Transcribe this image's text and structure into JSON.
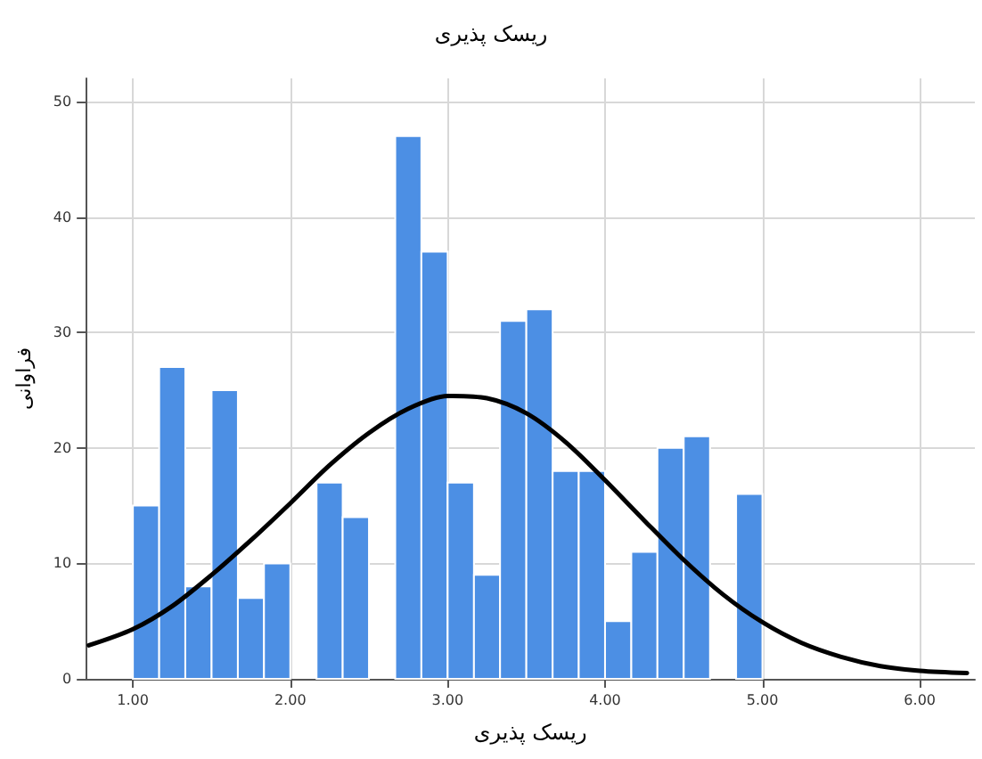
{
  "chart_data": {
    "type": "histogram",
    "title": "ریسک پذیری",
    "xlabel": "ریسک پذیری",
    "ylabel": "فراوانی",
    "bins": [
      1.0,
      1.167,
      1.333,
      1.5,
      1.667,
      1.833,
      2.0,
      2.167,
      2.333,
      2.5,
      2.667,
      2.833,
      3.0,
      3.167,
      3.333,
      3.5,
      3.667,
      3.833,
      4.0,
      4.167,
      4.333,
      4.5,
      4.667,
      4.833,
      5.0
    ],
    "series": [
      {
        "color": "#4c8fe4",
        "values": [
          15,
          27,
          8,
          25,
          7,
          10,
          0,
          17,
          14,
          0,
          47,
          37,
          17,
          9,
          31,
          32,
          18,
          18,
          5,
          11,
          20,
          21,
          0,
          16
        ]
      },
      {
        "type": "line",
        "color": "#000000",
        "x": [
          0.72,
          1.0,
          1.25,
          1.5,
          1.75,
          2.0,
          2.25,
          2.5,
          2.75,
          3.0,
          3.25,
          3.5,
          3.75,
          4.0,
          4.25,
          4.5,
          4.75,
          5.0,
          5.25,
          5.5,
          5.75,
          6.0,
          6.3
        ],
        "values": [
          2.9,
          4.3,
          6.3,
          9.0,
          12.0,
          15.2,
          18.5,
          21.3,
          23.4,
          24.5,
          24.3,
          23.0,
          20.5,
          17.2,
          13.7,
          10.3,
          7.3,
          4.9,
          3.1,
          1.9,
          1.1,
          0.7,
          0.5
        ]
      }
    ],
    "xlim": [
      0.7,
      6.35
    ],
    "xticks": [
      {
        "value": 1,
        "label": "1.00"
      },
      {
        "value": 2,
        "label": "2.00"
      },
      {
        "value": 3,
        "label": "3.00"
      },
      {
        "value": 4,
        "label": "4.00"
      },
      {
        "value": 5,
        "label": "5.00"
      },
      {
        "value": 6,
        "label": "6.00"
      }
    ],
    "ylim": [
      0,
      52
    ],
    "yticks": [
      0,
      10,
      20,
      30,
      40,
      50
    ],
    "grid": true,
    "line_style": "solid",
    "marker": "none"
  }
}
